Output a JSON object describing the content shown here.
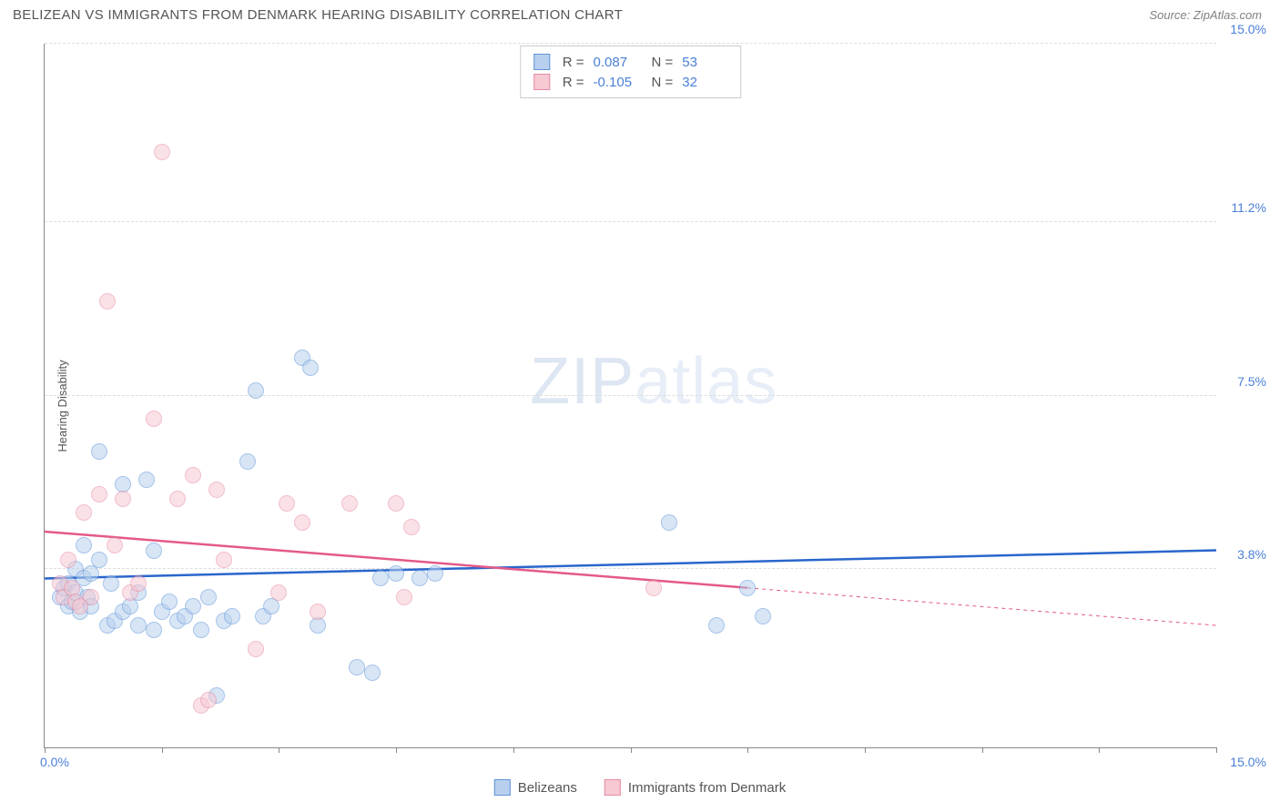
{
  "header": {
    "title": "BELIZEAN VS IMMIGRANTS FROM DENMARK HEARING DISABILITY CORRELATION CHART",
    "source": "Source: ZipAtlas.com"
  },
  "chart": {
    "type": "scatter",
    "y_axis_title": "Hearing Disability",
    "watermark": "ZIPatlas",
    "xlim": [
      0,
      15
    ],
    "ylim": [
      0,
      15
    ],
    "x_ticks": [
      0,
      1.5,
      3.0,
      4.5,
      6.0,
      7.5,
      9.0,
      10.5,
      12.0,
      13.5,
      15.0
    ],
    "y_gridlines": [
      3.8,
      7.5,
      11.2,
      15.0
    ],
    "x_label_min": "0.0%",
    "x_label_max": "15.0%",
    "y_tick_labels": [
      "3.8%",
      "7.5%",
      "11.2%",
      "15.0%"
    ],
    "grid_color": "#dddddd",
    "axis_color": "#888888",
    "background_color": "#ffffff",
    "point_radius": 9,
    "point_opacity": 0.55,
    "series": [
      {
        "name": "Belizeans",
        "fill": "#b8d0ee",
        "stroke": "#5f94d8",
        "trend": {
          "color": "#2966cc",
          "width": 2.5,
          "y_at_xmin": 3.6,
          "y_at_xmax": 4.2,
          "solid_to_x": 15.0
        },
        "stats": {
          "R": "0.087",
          "N": "53"
        },
        "points": [
          [
            0.2,
            3.2
          ],
          [
            0.25,
            3.4
          ],
          [
            0.3,
            3.0
          ],
          [
            0.3,
            3.5
          ],
          [
            0.35,
            3.1
          ],
          [
            0.4,
            3.3
          ],
          [
            0.4,
            3.8
          ],
          [
            0.45,
            2.9
          ],
          [
            0.5,
            3.6
          ],
          [
            0.5,
            4.3
          ],
          [
            0.55,
            3.2
          ],
          [
            0.6,
            3.7
          ],
          [
            0.7,
            4.0
          ],
          [
            0.7,
            6.3
          ],
          [
            0.8,
            2.6
          ],
          [
            0.85,
            3.5
          ],
          [
            0.9,
            2.7
          ],
          [
            1.0,
            2.9
          ],
          [
            1.0,
            5.6
          ],
          [
            1.1,
            3.0
          ],
          [
            1.2,
            2.6
          ],
          [
            1.2,
            3.3
          ],
          [
            1.3,
            5.7
          ],
          [
            1.4,
            4.2
          ],
          [
            1.4,
            2.5
          ],
          [
            1.5,
            2.9
          ],
          [
            1.6,
            3.1
          ],
          [
            1.7,
            2.7
          ],
          [
            1.8,
            2.8
          ],
          [
            1.9,
            3.0
          ],
          [
            2.0,
            2.5
          ],
          [
            2.1,
            3.2
          ],
          [
            2.2,
            1.1
          ],
          [
            2.3,
            2.7
          ],
          [
            2.4,
            2.8
          ],
          [
            2.6,
            6.1
          ],
          [
            2.7,
            7.6
          ],
          [
            2.8,
            2.8
          ],
          [
            2.9,
            3.0
          ],
          [
            3.3,
            8.3
          ],
          [
            3.4,
            8.1
          ],
          [
            3.5,
            2.6
          ],
          [
            4.0,
            1.7
          ],
          [
            4.2,
            1.6
          ],
          [
            4.3,
            3.6
          ],
          [
            4.5,
            3.7
          ],
          [
            4.8,
            3.6
          ],
          [
            5.0,
            3.7
          ],
          [
            8.0,
            4.8
          ],
          [
            8.6,
            2.6
          ],
          [
            9.0,
            3.4
          ],
          [
            9.2,
            2.8
          ],
          [
            0.6,
            3.0
          ]
        ]
      },
      {
        "name": "Immigrants from Denmark",
        "fill": "#f6c9d3",
        "stroke": "#e68aa3",
        "trend": {
          "color": "#e45a87",
          "width": 2.5,
          "y_at_xmin": 4.6,
          "y_at_xmax": 2.6,
          "solid_to_x": 9.0
        },
        "stats": {
          "R": "-0.105",
          "N": "32"
        },
        "points": [
          [
            0.2,
            3.5
          ],
          [
            0.25,
            3.2
          ],
          [
            0.3,
            4.0
          ],
          [
            0.35,
            3.4
          ],
          [
            0.4,
            3.1
          ],
          [
            0.5,
            5.0
          ],
          [
            0.6,
            3.2
          ],
          [
            0.7,
            5.4
          ],
          [
            0.8,
            9.5
          ],
          [
            0.9,
            4.3
          ],
          [
            1.0,
            5.3
          ],
          [
            1.1,
            3.3
          ],
          [
            1.2,
            3.5
          ],
          [
            1.4,
            7.0
          ],
          [
            1.5,
            12.7
          ],
          [
            1.7,
            5.3
          ],
          [
            1.9,
            5.8
          ],
          [
            2.0,
            0.9
          ],
          [
            2.1,
            1.0
          ],
          [
            2.2,
            5.5
          ],
          [
            2.3,
            4.0
          ],
          [
            2.7,
            2.1
          ],
          [
            3.0,
            3.3
          ],
          [
            3.1,
            5.2
          ],
          [
            3.3,
            4.8
          ],
          [
            3.5,
            2.9
          ],
          [
            3.9,
            5.2
          ],
          [
            4.5,
            5.2
          ],
          [
            4.6,
            3.2
          ],
          [
            4.7,
            4.7
          ],
          [
            7.8,
            3.4
          ],
          [
            0.45,
            3.0
          ]
        ]
      }
    ],
    "stat_legend": {
      "r_label": "R =",
      "n_label": "N ="
    },
    "bottom_legend": {
      "items": [
        "Belizeans",
        "Immigrants from Denmark"
      ]
    }
  }
}
